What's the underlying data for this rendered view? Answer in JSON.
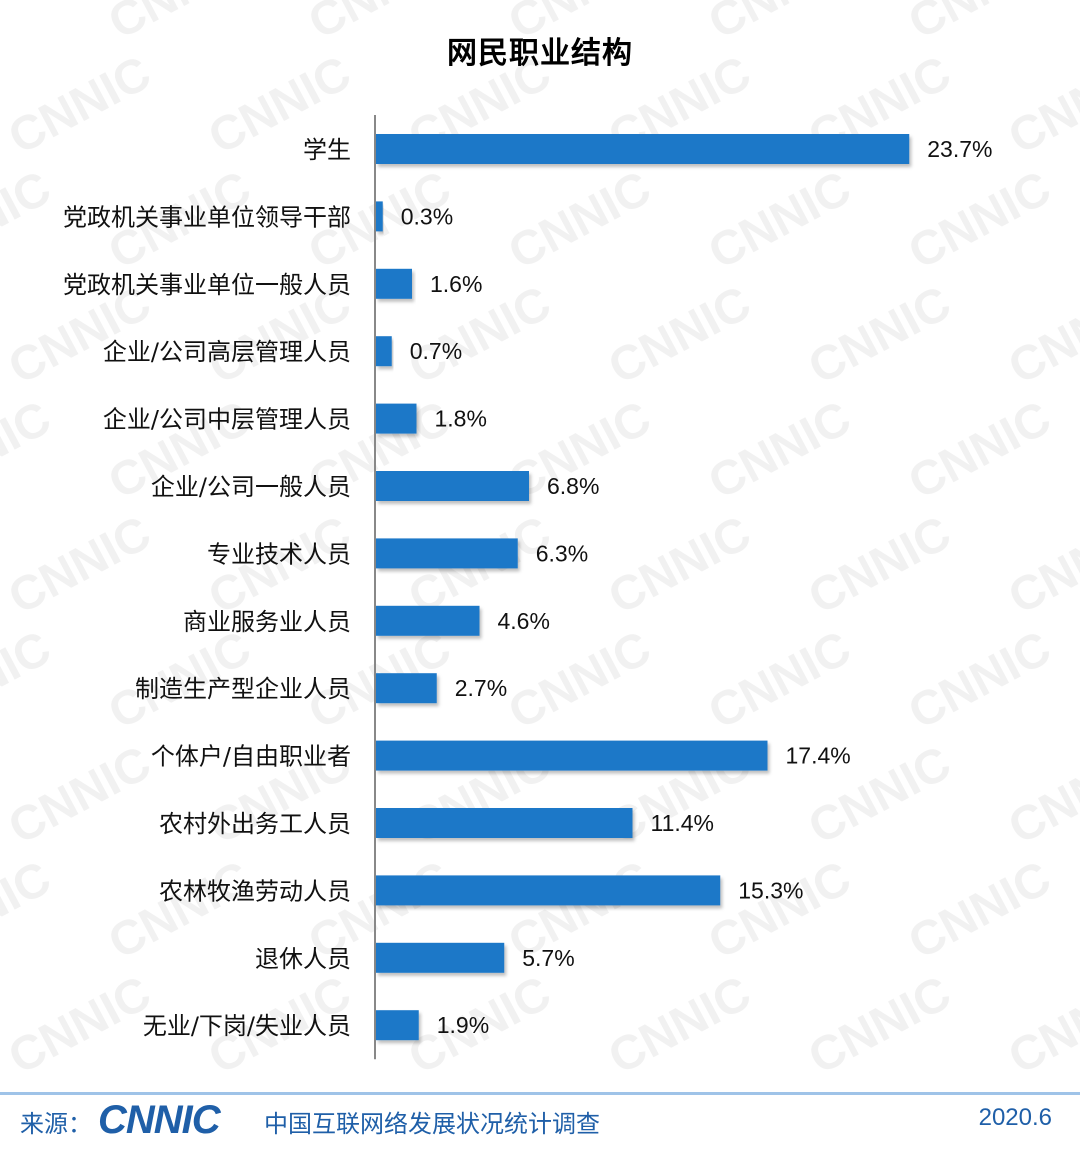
{
  "chart_data": {
    "type": "bar",
    "orientation": "horizontal",
    "title": "网民职业结构",
    "categories": [
      "学生",
      "党政机关事业单位领导干部",
      "党政机关事业单位一般人员",
      "企业/公司高层管理人员",
      "企业/公司中层管理人员",
      "企业/公司一般人员",
      "专业技术人员",
      "商业服务业人员",
      "制造生产型企业人员",
      "个体户/自由职业者",
      "农村外出务工人员",
      "农林牧渔劳动人员",
      "退休人员",
      "无业/下岗/失业人员"
    ],
    "values": [
      23.7,
      0.3,
      1.6,
      0.7,
      1.8,
      6.8,
      6.3,
      4.6,
      2.7,
      17.4,
      11.4,
      15.3,
      5.7,
      1.9
    ],
    "value_labels": [
      "23.7%",
      "0.3%",
      "1.6%",
      "0.7%",
      "1.8%",
      "6.8%",
      "6.3%",
      "4.6%",
      "2.7%",
      "17.4%",
      "11.4%",
      "15.3%",
      "5.7%",
      "1.9%"
    ],
    "unit": "%",
    "bar_color": "#1f78c8",
    "grid": false,
    "legend": "none"
  },
  "watermark": "CNNIC",
  "footer": {
    "source_label": "来源：",
    "logo_text": "CNNIC",
    "survey_name": "中国互联网络发展状况统计调查",
    "date": "2020.6"
  },
  "colors": {
    "accent": "#1f5fa8",
    "bar": "#1f78c8"
  }
}
